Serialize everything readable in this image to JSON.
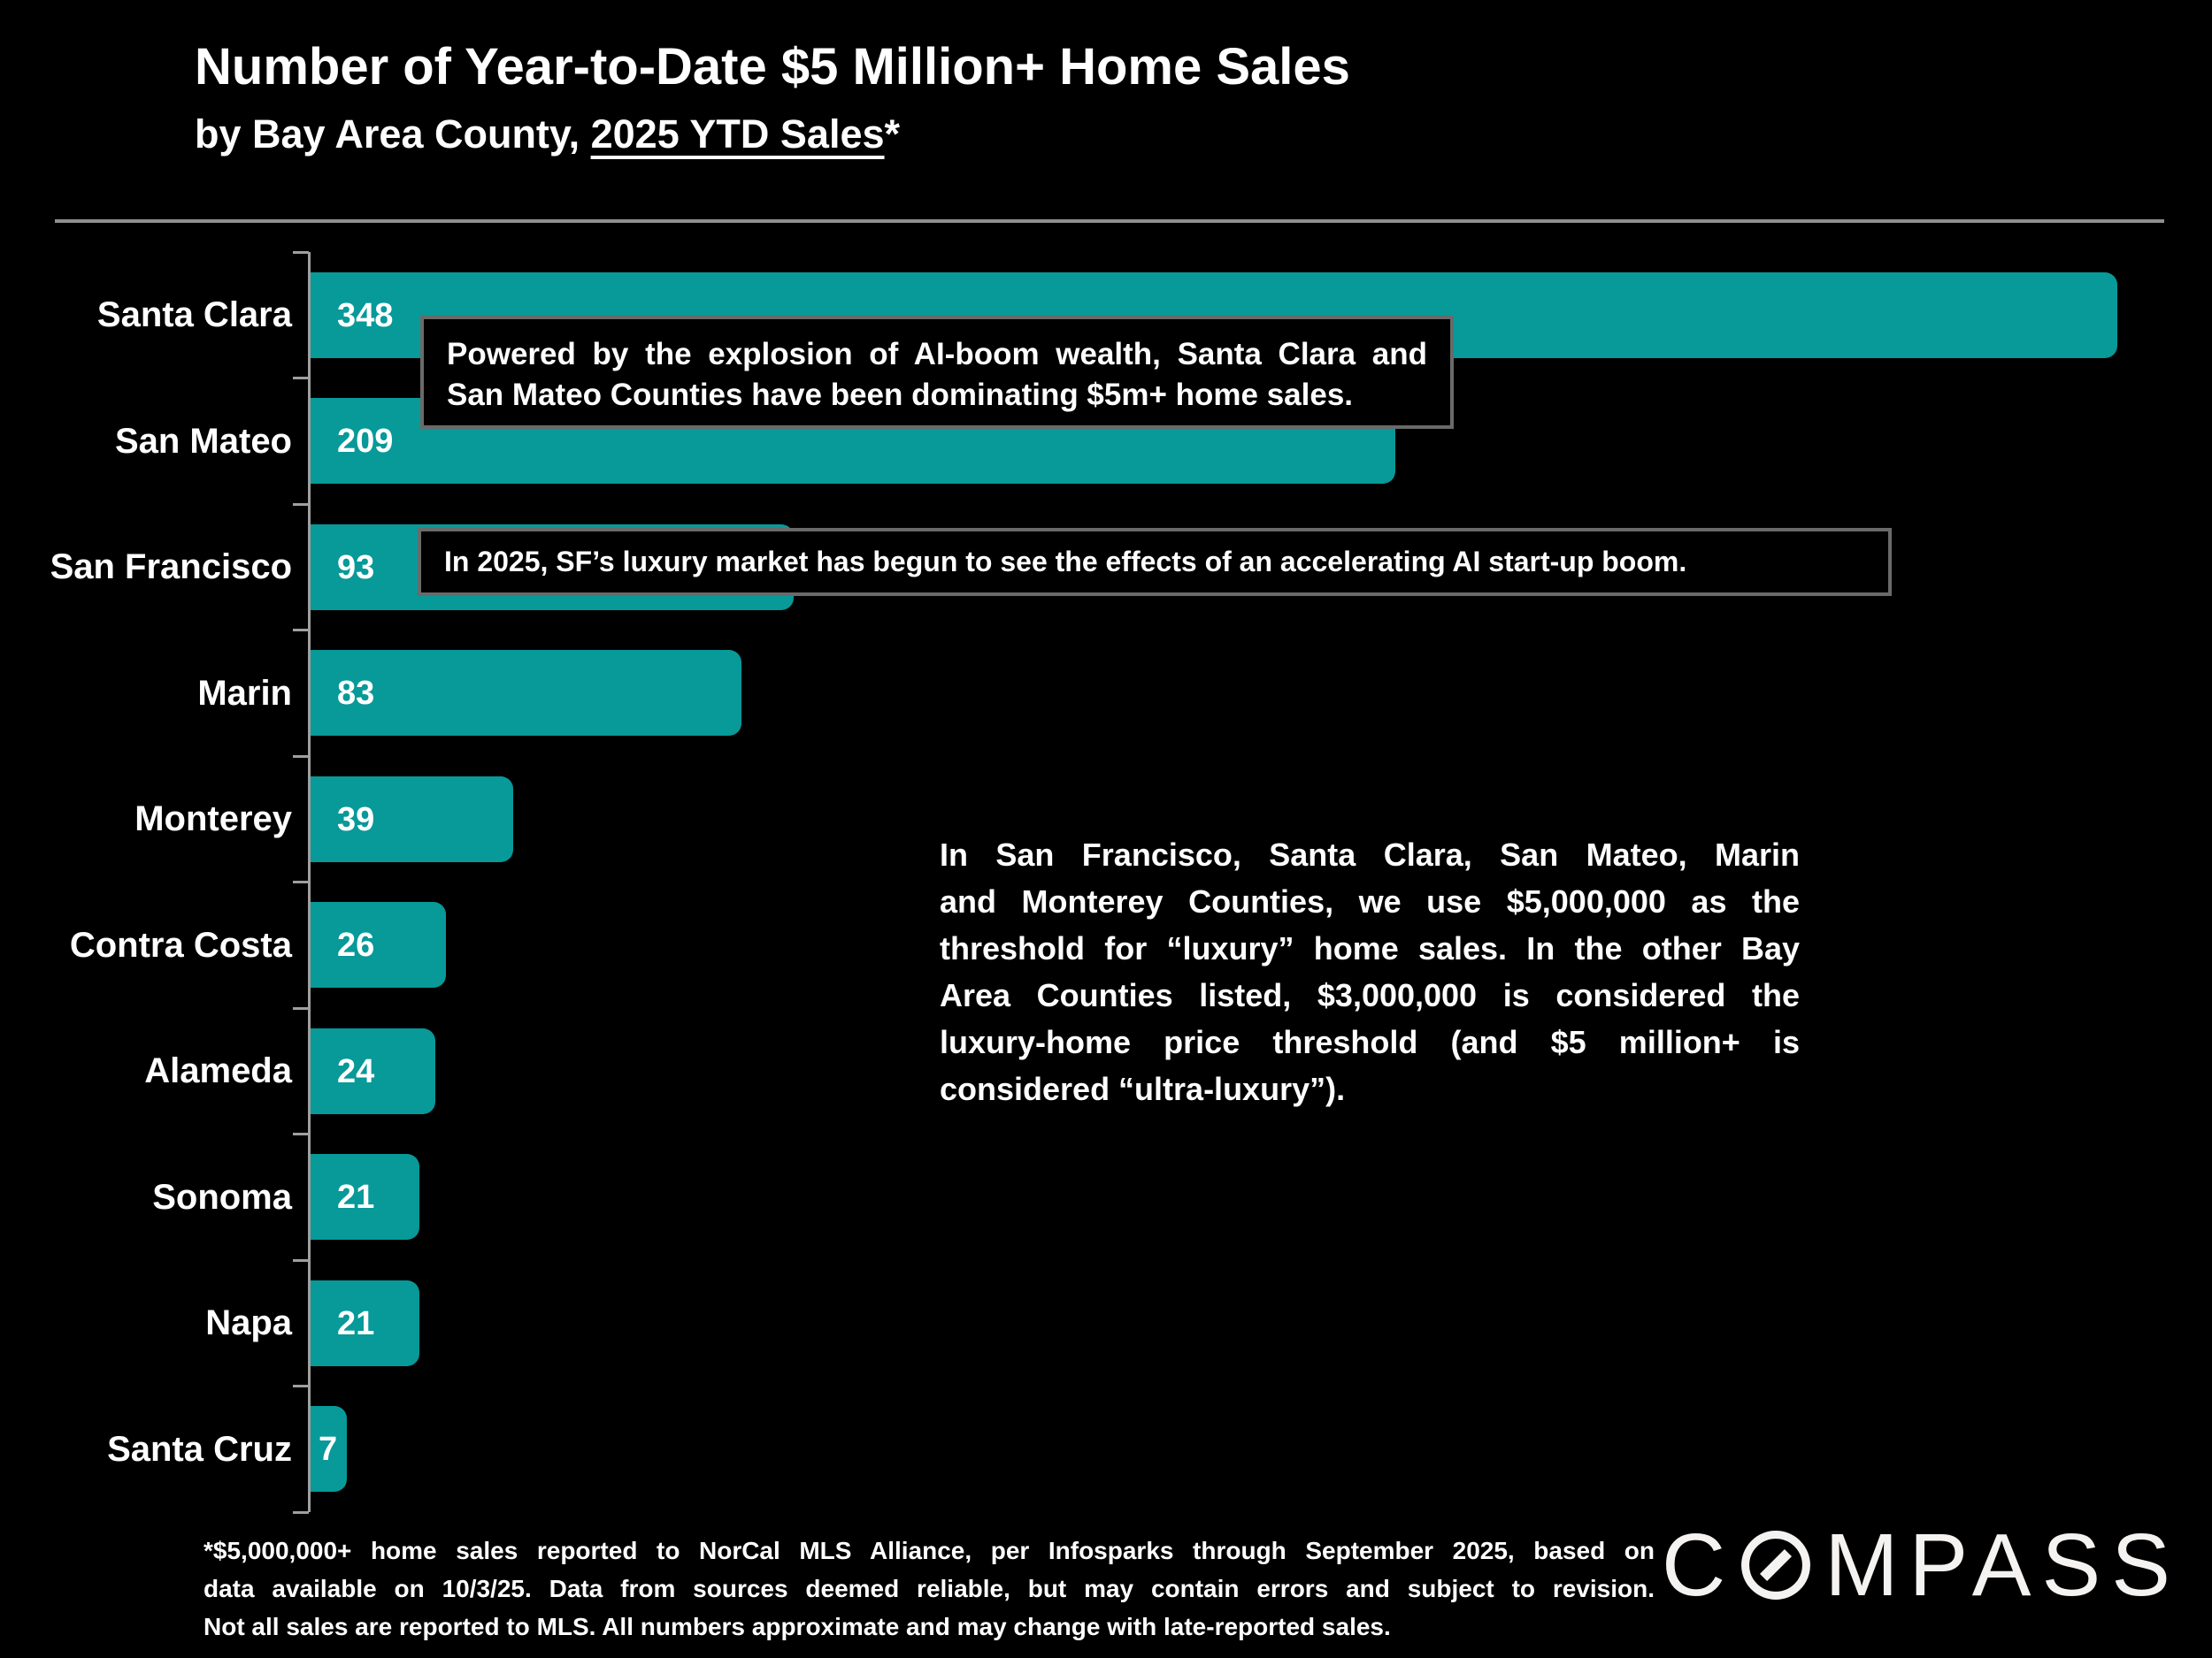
{
  "header": {
    "title": "Number of Year-to-Date $5 Million+ Home Sales",
    "subtitle_prefix": "by Bay Area County, ",
    "subtitle_underline": "2025 YTD Sales",
    "subtitle_suffix": "*"
  },
  "chart_data": {
    "type": "bar",
    "orientation": "horizontal",
    "title": "Number of Year-to-Date $5 Million+ Home Sales",
    "subtitle": "by Bay Area County, 2025 YTD Sales*",
    "categories": [
      "Santa Clara",
      "San Mateo",
      "San Francisco",
      "Marin",
      "Monterey",
      "Contra Costa",
      "Alameda",
      "Sonoma",
      "Napa",
      "Santa Cruz"
    ],
    "values": [
      348,
      209,
      93,
      83,
      39,
      26,
      24,
      21,
      21,
      7
    ],
    "xlabel": "",
    "ylabel": "",
    "xlim": [
      0,
      348
    ],
    "grid": false,
    "legend": false,
    "value_labels": "inside-left",
    "bar_color": "#089999"
  },
  "annotations": {
    "callout_top_lines": [
      "Powered by the explosion of AI-boom wealth, Santa Clara and",
      "San Mateo Counties have been dominating $5m+ home sales."
    ],
    "callout_sf": "In 2025, SF’s luxury market has begun to see the effects of an accelerating AI start-up boom.",
    "threshold_note_lines": [
      "In San Francisco, Santa Clara, San Mateo, Marin",
      "and Monterey Counties, we use $5,000,000 as the",
      "threshold for “luxury” home sales. In the other Bay",
      "Area Counties listed, $3,000,000 is considered the",
      "luxury-home price threshold (and $5 million+ is",
      "considered “ultra-luxury”)."
    ]
  },
  "footer": {
    "footnote_lines": [
      "*$5,000,000+ home sales reported to NorCal MLS Alliance, per Infosparks through September 2025, based on",
      "data available on 10/3/25. Data from sources deemed reliable, but may contain errors and subject to revision.",
      "Not all sales are reported to MLS. All numbers approximate and may change with late-reported sales."
    ],
    "logo_c": "C",
    "logo_rest": "MPASS",
    "logo_text": "COMPASS"
  },
  "colors": {
    "background": "#000000",
    "bar": "#089999",
    "text": "#ffffff",
    "rule": "#8f8f8f",
    "axis": "#9f9f9f",
    "callout_border": "#6a6a6a"
  }
}
